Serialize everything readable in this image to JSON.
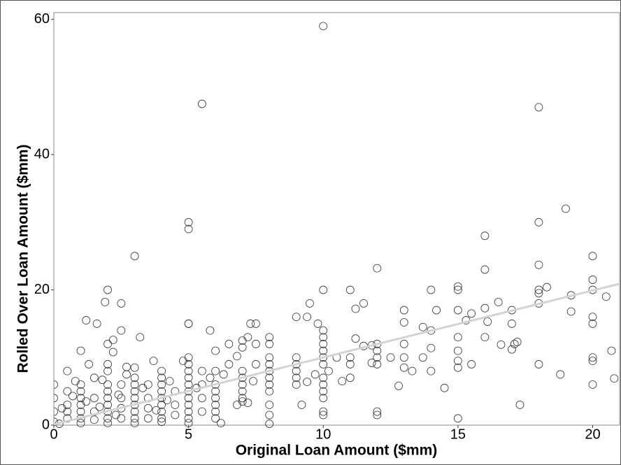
{
  "chart_data": {
    "type": "scatter",
    "x_label": "Original Loan Amount ($mm)",
    "y_label": "Rolled Over Loan Amount ($mm)",
    "xlim": [
      0,
      21
    ],
    "ylim": [
      0,
      61
    ],
    "xticks": [
      0,
      5,
      10,
      15,
      20
    ],
    "yticks": [
      0,
      20,
      40,
      60
    ],
    "grid": false,
    "marker_color": "#333333",
    "trendline": {
      "color": "#d3d3d3",
      "x": [
        0,
        21
      ],
      "y": [
        0.1,
        20.9
      ]
    },
    "x": [
      10,
      5.5,
      18,
      5,
      5,
      3,
      19,
      18,
      16,
      20,
      18,
      16,
      12,
      2,
      10,
      11,
      14,
      15,
      15,
      18,
      18.3,
      20,
      20,
      18,
      19.2,
      20.5,
      1.9,
      2.5,
      9.5,
      11.5,
      16.5,
      18,
      19.2,
      20,
      20,
      17,
      16,
      15.5,
      15,
      14.2,
      13,
      13,
      11.2,
      1.2,
      1.6,
      5,
      7.5,
      7.3,
      5.8,
      9.8,
      9.4,
      9,
      10,
      14,
      13.7,
      15.3,
      16.1,
      17,
      17.1,
      17,
      17.2,
      18,
      16.6,
      16,
      15,
      15,
      15,
      15,
      15.5,
      14.5,
      15,
      17.3,
      18.8,
      20,
      20,
      20,
      20.7,
      20.8,
      2.5,
      3.2,
      2,
      1,
      6,
      6.5,
      7,
      7.2,
      7.5,
      8,
      8,
      8,
      8,
      8,
      8,
      8,
      8,
      8,
      8,
      8,
      9,
      9,
      9,
      9,
      9,
      9.2,
      10,
      10,
      10,
      10,
      10,
      10,
      10,
      10,
      10,
      10,
      10,
      10.5,
      11,
      11,
      11,
      11.2,
      11.5,
      11.8,
      12,
      12,
      12,
      12,
      12,
      12,
      12.8,
      13,
      13,
      13,
      13.3,
      13.7,
      14,
      14,
      12.5,
      11.8,
      10.7,
      10.2,
      9.7,
      9.4,
      7,
      6.8,
      6.5,
      6,
      6,
      6,
      6,
      6,
      6,
      6,
      6.2,
      7,
      7,
      7,
      7,
      7,
      7,
      7.5,
      7.4,
      5,
      5,
      5,
      5,
      5,
      5,
      5,
      5,
      5,
      5,
      5,
      4,
      4,
      4,
      4,
      4,
      4,
      4,
      4,
      4,
      3.7,
      3,
      3,
      3,
      3,
      3,
      3,
      3,
      3,
      3,
      2,
      2,
      2,
      2,
      2,
      2,
      2,
      2,
      2,
      1,
      1,
      1,
      1,
      1,
      1,
      1,
      0.5,
      0.5,
      0.5,
      0.5,
      0.5,
      0.3,
      0,
      0,
      0,
      0,
      0.2,
      1.5,
      1.5,
      1.5,
      1.5,
      2.5,
      2.5,
      2.5,
      2.5,
      3.5,
      3.5,
      3.5,
      3.5,
      4.5,
      4.5,
      4.5,
      5.5,
      5.5,
      5.5,
      5.5,
      5.8,
      6.3,
      4.8,
      2.2,
      1.8,
      0.8,
      2.7,
      3.3,
      4.2,
      5.3,
      6.8,
      7.2,
      2.2,
      2.7,
      0.7,
      1.2,
      1.7,
      2.3,
      3.8,
      4.3,
      1.3,
      2.4,
      5
    ],
    "values": [
      59,
      47.5,
      47,
      30,
      29,
      25,
      32,
      30,
      28,
      25,
      23.7,
      23,
      23.2,
      20,
      20,
      20,
      20,
      20.5,
      20,
      20,
      20.4,
      21.5,
      20,
      19.5,
      19.2,
      19,
      18.2,
      18,
      18,
      18,
      18.2,
      18,
      16.8,
      16,
      15,
      17,
      17.3,
      16.5,
      17,
      17,
      17,
      15.2,
      17.2,
      15.5,
      15,
      15,
      15,
      15,
      14,
      15,
      16,
      16,
      14,
      14,
      14.5,
      15.5,
      15.3,
      15,
      12,
      11.2,
      12.3,
      9,
      11.9,
      13,
      13,
      11,
      9.5,
      8.5,
      9,
      5.5,
      1,
      3,
      7.5,
      9.5,
      10,
      6,
      11,
      6.9,
      14,
      13,
      12,
      11,
      11,
      12,
      12.5,
      13,
      12,
      13,
      12,
      10,
      9,
      8,
      7,
      6,
      5,
      3,
      1.5,
      0.2,
      10,
      9,
      8,
      7,
      6,
      3,
      13,
      12,
      11,
      10,
      9,
      7,
      6,
      5,
      2,
      1.5,
      4,
      10,
      10,
      9,
      7,
      12.8,
      11.7,
      11.8,
      12,
      11,
      10,
      9,
      2,
      1.5,
      5.8,
      12,
      10,
      8.5,
      8,
      10,
      11.4,
      8,
      10,
      9.2,
      6.5,
      8,
      7.5,
      6.4,
      11.5,
      10.2,
      9,
      8,
      6,
      5,
      4,
      3,
      2,
      1,
      0.3,
      8,
      7,
      6,
      5,
      4,
      3.5,
      9,
      6.5,
      10,
      9,
      8,
      7,
      6,
      5,
      4,
      3,
      2,
      1,
      0.3,
      8,
      7,
      6,
      5,
      4,
      3,
      2,
      1,
      0.5,
      9.5,
      8.5,
      7,
      6,
      5,
      4,
      3,
      2,
      1,
      0.3,
      9,
      8,
      6,
      5,
      4,
      3,
      2,
      1,
      0.3,
      6,
      5,
      4,
      3,
      2,
      1,
      0.3,
      8,
      5,
      3,
      2,
      1,
      2.5,
      6,
      4,
      2,
      0.5,
      0.2,
      7,
      4,
      2,
      0.8,
      6,
      4,
      2.5,
      1,
      6,
      4,
      2.5,
      1,
      5,
      3,
      1.5,
      6,
      4,
      2,
      8,
      7,
      7.5,
      9.5,
      10.8,
      6.7,
      6.5,
      7.5,
      5.5,
      3.7,
      5.5,
      3,
      3.3,
      12.6,
      8.6,
      4.3,
      3.5,
      2.7,
      1.5,
      2.2,
      6.5,
      9,
      4.5,
      15
    ]
  }
}
